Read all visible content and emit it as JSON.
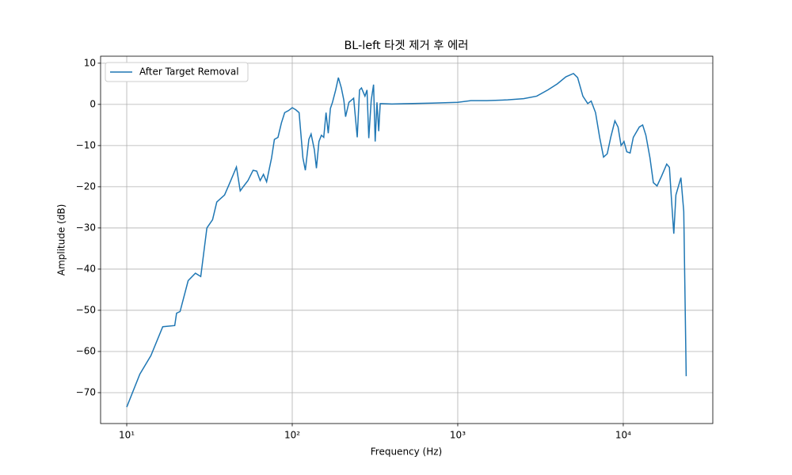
{
  "chart_data": {
    "type": "line",
    "title": "BL-left 타겟 제거 후 에러",
    "x_label": "Frequency (Hz)",
    "y_label": "Amplitude (dB)",
    "x_scale": "log",
    "grid": true,
    "legend": "upper left",
    "xlim": [
      6.95,
      34750
    ],
    "ylim": [
      -77.5,
      11.7
    ],
    "xticks": [
      {
        "value": 10,
        "label": "10¹"
      },
      {
        "value": 100,
        "label": "10²"
      },
      {
        "value": 1000,
        "label": "10³"
      },
      {
        "value": 10000,
        "label": "10⁴"
      }
    ],
    "yticks": [
      10,
      0,
      {
        "value": -10,
        "label": "−10"
      },
      {
        "value": -20,
        "label": "−20"
      },
      {
        "value": -30,
        "label": "−30"
      },
      {
        "value": -40,
        "label": "−40"
      },
      {
        "value": -50,
        "label": "−50"
      },
      {
        "value": -60,
        "label": "−60"
      },
      {
        "value": -70,
        "label": "−70"
      }
    ],
    "x": [
      10,
      12,
      14,
      16.5,
      19.5,
      20,
      21,
      23.5,
      26,
      28,
      30.5,
      33,
      35,
      39,
      42,
      46,
      48.5,
      51,
      54,
      58,
      61,
      64,
      67,
      70,
      75,
      78,
      82,
      86,
      90,
      95,
      100,
      105,
      110,
      116,
      120,
      126,
      130,
      136,
      140,
      145,
      150,
      155,
      160,
      165,
      170,
      175,
      183,
      190,
      198,
      205,
      210,
      220,
      235,
      247,
      255,
      262,
      275,
      283,
      290,
      300,
      310,
      317,
      325,
      333,
      340,
      350,
      400,
      500,
      700,
      1000,
      1200,
      1500,
      2000,
      2500,
      3000,
      3500,
      4000,
      4500,
      5000,
      5300,
      5700,
      6100,
      6400,
      6800,
      7200,
      7600,
      8000,
      8400,
      8900,
      9300,
      9700,
      10100,
      10500,
      11000,
      11500,
      12500,
      13100,
      13700,
      14500,
      15200,
      16000,
      17000,
      18300,
      19000,
      19700,
      20200,
      20800,
      22300,
      23200,
      24000
    ],
    "series": [
      {
        "name": "After Target Removal",
        "color": "#1f77b4",
        "values": [
          -73.5,
          -65.5,
          -61,
          -54,
          -53.7,
          -50.7,
          -50.3,
          -42.8,
          -41,
          -41.8,
          -30,
          -28,
          -23.7,
          -22,
          -19,
          -15.2,
          -21,
          -19.8,
          -18.5,
          -16,
          -16.2,
          -18.5,
          -17,
          -18.8,
          -13,
          -8.5,
          -8,
          -4.5,
          -2,
          -1.5,
          -0.8,
          -1.3,
          -2,
          -13,
          -16,
          -8.5,
          -7.2,
          -11,
          -15.5,
          -9,
          -7.5,
          -8,
          -2,
          -7,
          -1,
          0.5,
          3.5,
          6.5,
          4,
          1,
          -3,
          0.5,
          1.5,
          -8,
          3.5,
          4,
          2,
          3.5,
          -8.2,
          1,
          4.8,
          -9,
          0.5,
          -6.5,
          0.2,
          0.2,
          0.1,
          0.2,
          0.3,
          0.5,
          0.9,
          0.9,
          1.1,
          1.4,
          2.0,
          3.5,
          5,
          6.7,
          7.5,
          6.5,
          2,
          0.2,
          0.8,
          -2,
          -8,
          -12.8,
          -12,
          -8,
          -4,
          -5.5,
          -10,
          -9,
          -11.5,
          -11.8,
          -8,
          -5.5,
          -5,
          -7.5,
          -13,
          -19,
          -19.8,
          -17.5,
          -14.5,
          -15.3,
          -25,
          -31.4,
          -22,
          -17.8,
          -26,
          -66
        ]
      }
    ]
  }
}
